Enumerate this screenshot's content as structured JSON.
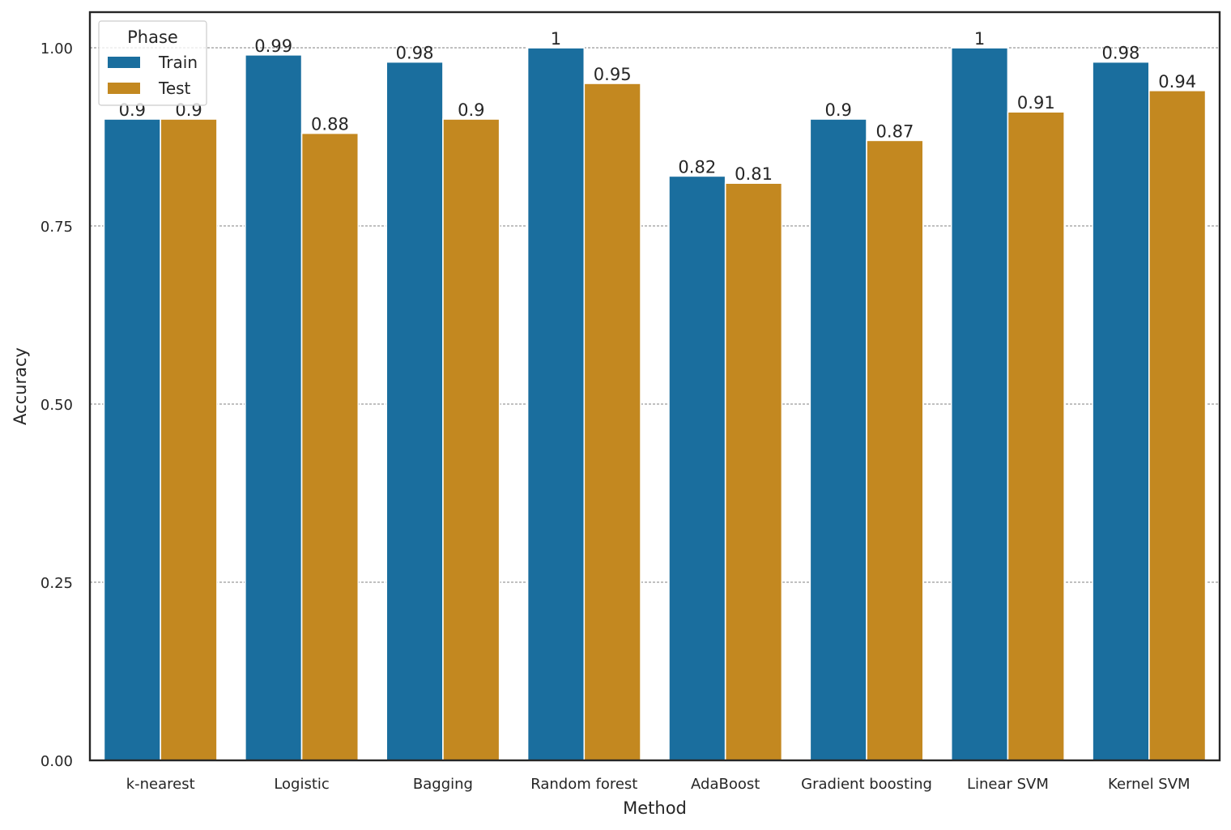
{
  "chart_data": {
    "type": "bar",
    "xlabel": "Method",
    "ylabel": "Accuracy",
    "categories": [
      "k-nearest",
      "Logistic",
      "Bagging",
      "Random forest",
      "AdaBoost",
      "Gradient boosting",
      "Linear SVM",
      "Kernel SVM"
    ],
    "series": [
      {
        "name": "Train",
        "color": "#1a6e9e",
        "values": [
          0.9,
          0.99,
          0.98,
          1,
          0.82,
          0.9,
          1,
          0.98
        ],
        "labels": [
          "0.9",
          "0.99",
          "0.98",
          "1",
          "0.82",
          "0.9",
          "1",
          "0.98"
        ]
      },
      {
        "name": "Test",
        "color": "#c38820",
        "values": [
          0.9,
          0.88,
          0.9,
          0.95,
          0.81,
          0.87,
          0.91,
          0.94
        ],
        "labels": [
          "0.9",
          "0.88",
          "0.9",
          "0.95",
          "0.81",
          "0.87",
          "0.91",
          "0.94"
        ]
      }
    ],
    "ylim": [
      0,
      1.05
    ],
    "yticks": [
      0,
      0.25,
      0.5,
      0.75,
      1.0
    ],
    "ytick_labels": [
      "0.00",
      "0.25",
      "0.50",
      "0.75",
      "1.00"
    ],
    "grid": "horizontal dashed",
    "legend": {
      "title": "Phase",
      "placement": "top-left"
    }
  }
}
